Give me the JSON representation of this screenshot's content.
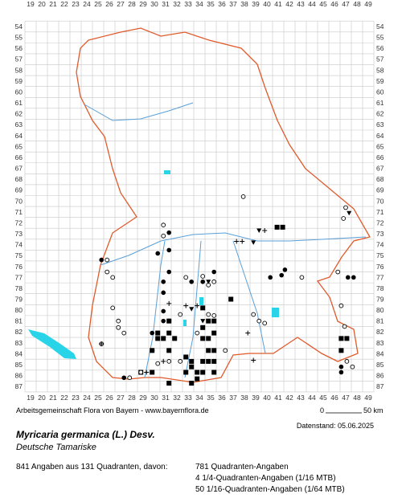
{
  "columns": [
    19,
    20,
    21,
    22,
    23,
    24,
    25,
    26,
    27,
    28,
    29,
    30,
    31,
    32,
    33,
    34,
    35,
    36,
    37,
    38,
    39,
    40,
    41,
    42,
    43,
    44,
    45,
    46,
    47,
    48,
    49
  ],
  "rows": [
    54,
    55,
    56,
    57,
    58,
    59,
    60,
    61,
    62,
    63,
    64,
    65,
    66,
    67,
    68,
    69,
    70,
    71,
    72,
    73,
    74,
    75,
    76,
    77,
    78,
    79,
    80,
    81,
    82,
    83,
    84,
    85,
    86,
    87
  ],
  "markers": {
    "square": [
      [
        40.9,
        72.4
      ],
      [
        41.4,
        72.4
      ],
      [
        36.8,
        79.0
      ],
      [
        31.3,
        81.0
      ],
      [
        31.3,
        82.1
      ],
      [
        30.3,
        82.1
      ],
      [
        30.3,
        82.6
      ],
      [
        30.8,
        82.6
      ],
      [
        31.8,
        82.6
      ],
      [
        29.8,
        83.7
      ],
      [
        31.3,
        83.7
      ],
      [
        34.3,
        81.6
      ],
      [
        34.8,
        82.6
      ],
      [
        34.8,
        83.7
      ],
      [
        35.3,
        83.7
      ],
      [
        33.3,
        84.7
      ],
      [
        34.3,
        84.7
      ],
      [
        34.8,
        84.7
      ],
      [
        35.3,
        84.7
      ],
      [
        32.8,
        85.7
      ],
      [
        33.8,
        85.7
      ],
      [
        33.3,
        85.2
      ],
      [
        34.3,
        85.7
      ],
      [
        33.3,
        86.7
      ],
      [
        31.3,
        86.7
      ],
      [
        29.8,
        85.7
      ],
      [
        28.8,
        85.7
      ],
      [
        46.6,
        82.6
      ],
      [
        47.1,
        82.6
      ],
      [
        46.6,
        83.7
      ],
      [
        35.3,
        81.0
      ],
      [
        34.3,
        79.8
      ],
      [
        34.8,
        81.0
      ],
      [
        34.3,
        82.6
      ],
      [
        35.3,
        82.1
      ],
      [
        32.8,
        84.3
      ],
      [
        35.3,
        85.7
      ],
      [
        33.8,
        86.3
      ]
    ],
    "dot": [
      [
        25.3,
        75.4
      ],
      [
        30.3,
        74.8
      ],
      [
        31.3,
        74.5
      ],
      [
        31.3,
        76.5
      ],
      [
        30.8,
        77.4
      ],
      [
        30.8,
        78.4
      ],
      [
        35.3,
        76.5
      ],
      [
        34.3,
        77.4
      ],
      [
        33.3,
        77.4
      ],
      [
        40.3,
        77.0
      ],
      [
        41.3,
        76.8
      ],
      [
        41.6,
        76.3
      ],
      [
        47.2,
        77.0
      ],
      [
        47.7,
        77.0
      ],
      [
        31.3,
        72.9
      ],
      [
        27.3,
        86.2
      ],
      [
        30.8,
        80.1
      ],
      [
        30.8,
        81.0
      ],
      [
        29.8,
        82.1
      ],
      [
        46.6,
        85.2
      ],
      [
        46.6,
        85.7
      ]
    ],
    "circle": [
      [
        25.8,
        75.4
      ],
      [
        25.8,
        76.5
      ],
      [
        26.3,
        77.0
      ],
      [
        30.8,
        72.2
      ],
      [
        30.8,
        73.2
      ],
      [
        32.8,
        77.0
      ],
      [
        34.3,
        76.9
      ],
      [
        34.8,
        77.7
      ],
      [
        35.3,
        77.4
      ],
      [
        26.3,
        79.8
      ],
      [
        26.8,
        81.0
      ],
      [
        26.8,
        81.6
      ],
      [
        27.3,
        82.1
      ],
      [
        25.3,
        83.1
      ],
      [
        27.8,
        86.2
      ],
      [
        28.8,
        85.7
      ],
      [
        30.3,
        84.9
      ],
      [
        34.8,
        80.4
      ],
      [
        35.3,
        80.5
      ],
      [
        38.8,
        80.4
      ],
      [
        39.3,
        81.0
      ],
      [
        39.8,
        81.2
      ],
      [
        43.1,
        77.0
      ],
      [
        47.0,
        70.6
      ],
      [
        46.8,
        71.6
      ],
      [
        37.9,
        69.6
      ],
      [
        46.3,
        76.5
      ],
      [
        46.6,
        79.6
      ],
      [
        46.9,
        81.5
      ],
      [
        47.1,
        84.7
      ],
      [
        47.6,
        85.2
      ],
      [
        31.3,
        84.7
      ],
      [
        32.3,
        84.7
      ],
      [
        36.3,
        83.7
      ],
      [
        33.8,
        82.1
      ],
      [
        32.3,
        80.4
      ]
    ],
    "plus": [
      [
        31.3,
        79.4
      ],
      [
        31.3,
        81.0
      ],
      [
        32.8,
        79.6
      ],
      [
        33.8,
        79.6
      ],
      [
        37.3,
        73.7
      ],
      [
        37.8,
        73.7
      ],
      [
        39.8,
        72.7
      ],
      [
        30.8,
        84.7
      ],
      [
        29.3,
        85.7
      ],
      [
        38.3,
        82.1
      ],
      [
        38.8,
        84.6
      ],
      [
        25.3,
        83.1
      ],
      [
        29.8,
        83.7
      ]
    ],
    "triangle": [
      [
        38.8,
        73.8
      ],
      [
        39.3,
        72.7
      ],
      [
        33.3,
        79.9
      ],
      [
        34.3,
        81.0
      ],
      [
        34.8,
        77.4
      ],
      [
        47.3,
        71.1
      ]
    ]
  },
  "footer": {
    "credit": "Arbeitsgemeinschaft Flora von Bayern - www.bayernflora.de",
    "date": "Datenstand: 05.06.2025",
    "scale_start": "0",
    "scale_end": "50 km"
  },
  "species": {
    "name": "Myricaria germanica (L.) Desv.",
    "common": "Deutsche Tamariske"
  },
  "summary": {
    "total": "841 Angaben aus 131 Quadranten, davon:",
    "lines": [
      "781 Quadranten-Angaben",
      "4 1/4-Quadranten-Angaben (1/16 MTB)",
      "50 1/16-Quadranten-Angaben (1/64 MTB)"
    ]
  }
}
